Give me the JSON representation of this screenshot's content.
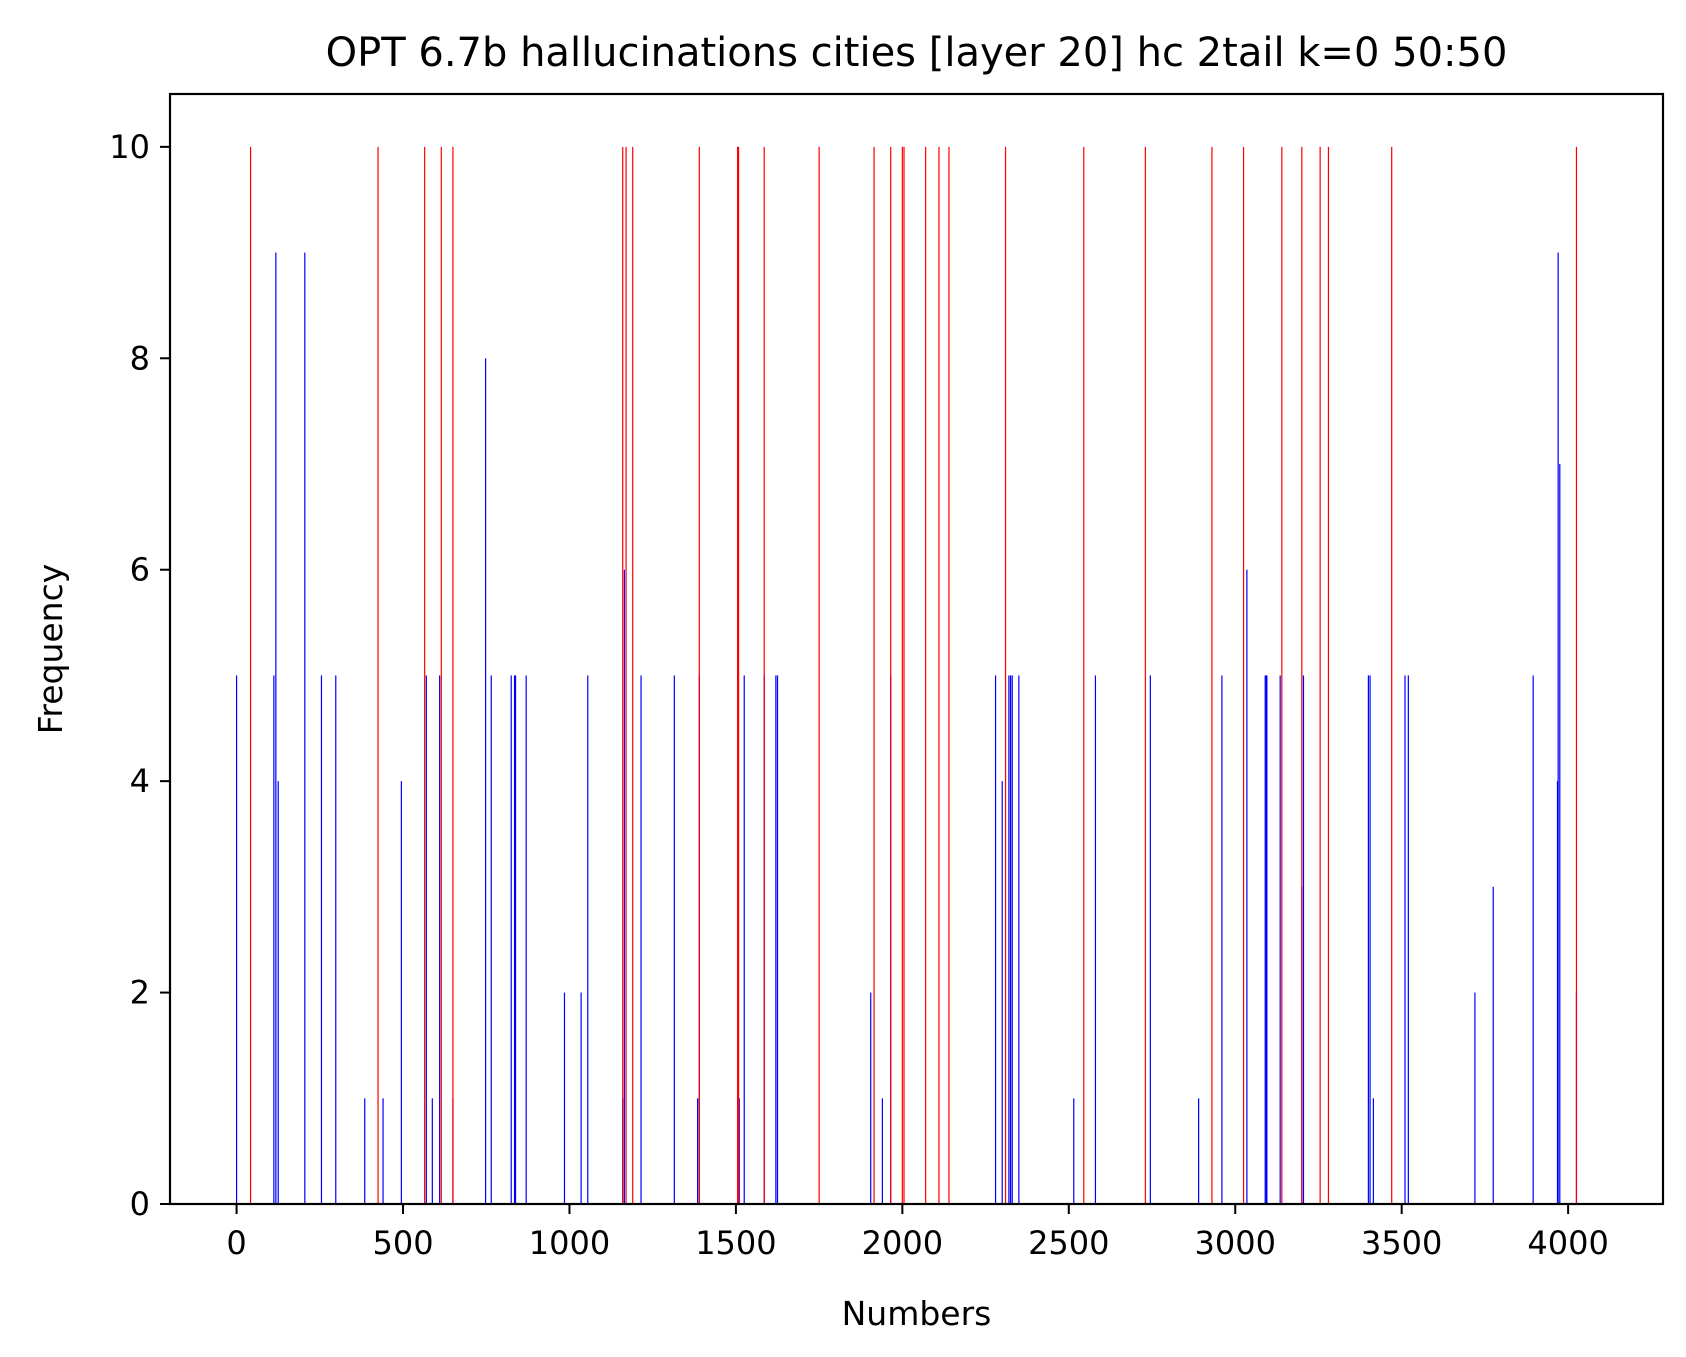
{
  "chart_data": {
    "type": "bar",
    "title": "OPT 6.7b hallucinations cities [layer 20] hc 2tail k=0 50:50",
    "xlabel": "Numbers",
    "ylabel": "Frequency",
    "xlim": [
      -200,
      4285
    ],
    "ylim": [
      0,
      10.5
    ],
    "xticks": [
      0,
      500,
      1000,
      1500,
      2000,
      2500,
      3000,
      3500,
      4000
    ],
    "yticks": [
      0,
      2,
      4,
      6,
      8,
      10
    ],
    "grid": false,
    "series": [
      {
        "color": "#0000ff",
        "x": [
          0,
          112,
          118,
          125,
          205,
          255,
          298,
          385,
          440,
          495,
          570,
          588,
          610,
          650,
          748,
          765,
          825,
          835,
          838,
          870,
          985,
          1035,
          1055,
          1160,
          1165,
          1215,
          1315,
          1385,
          1390,
          1510,
          1525,
          1585,
          1620,
          1625,
          1905,
          1940,
          1965,
          2280,
          2300,
          2320,
          2325,
          2330,
          2350,
          2515,
          2580,
          2745,
          2890,
          2960,
          3035,
          3090,
          3093,
          3095,
          3135,
          3200,
          3205,
          3400,
          3405,
          3415,
          3510,
          3520,
          3720,
          3775,
          3895,
          3968,
          3970,
          3975,
          4025
        ],
        "values": [
          5,
          5,
          9,
          4,
          9,
          5,
          5,
          1,
          1,
          4,
          5,
          1,
          5,
          1,
          8,
          5,
          5,
          5,
          5,
          5,
          2,
          2,
          5,
          1,
          6,
          5,
          5,
          1,
          5,
          1,
          5,
          5,
          5,
          5,
          2,
          1,
          5,
          5,
          4,
          5,
          5,
          5,
          5,
          1,
          5,
          5,
          1,
          5,
          6,
          5,
          5,
          5,
          5,
          3,
          5,
          5,
          5,
          1,
          5,
          5,
          2,
          3,
          5,
          4,
          9,
          7,
          2
        ]
      },
      {
        "color": "#ff0000",
        "x": [
          42,
          425,
          565,
          615,
          650,
          1160,
          1170,
          1190,
          1390,
          1505,
          1508,
          1585,
          1750,
          1915,
          1965,
          2000,
          2005,
          2070,
          2110,
          2140,
          2310,
          2545,
          2730,
          2930,
          3025,
          3140,
          3200,
          3255,
          3280,
          3470,
          4025
        ],
        "values": [
          10,
          10,
          10,
          10,
          10,
          10,
          10,
          10,
          10,
          10,
          10,
          10,
          10,
          10,
          10,
          10,
          10,
          10,
          10,
          10,
          10,
          10,
          10,
          10,
          10,
          10,
          10,
          10,
          10,
          10,
          10
        ]
      }
    ]
  }
}
